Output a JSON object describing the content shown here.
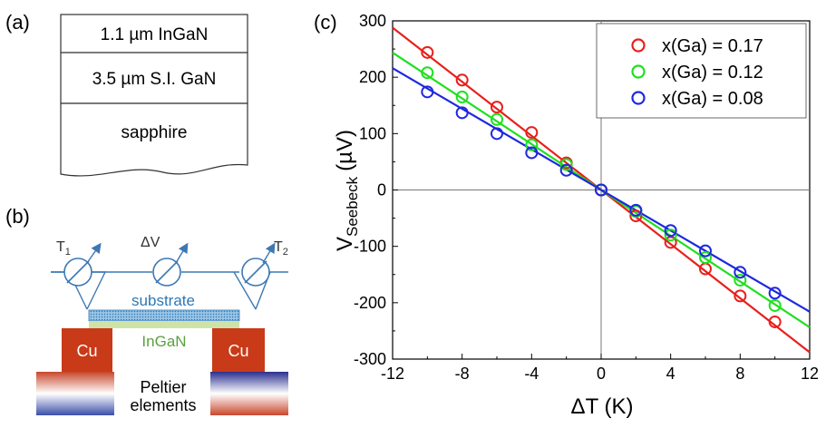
{
  "panel_labels": {
    "a": "(a)",
    "b": "(b)",
    "c": "(c)"
  },
  "layer_stack": {
    "layers": [
      "1.1 µm InGaN",
      "3.5 µm S.I. GaN",
      "sapphire"
    ]
  },
  "setup": {
    "meters": {
      "t1": "T",
      "t1_sub": "1",
      "dv": "ΔV",
      "t2": "T",
      "t2_sub": "2"
    },
    "substrate_label": "substrate",
    "ingan_label": "InGaN",
    "cu_left": "Cu",
    "cu_right": "Cu",
    "peltier_label_1": "Peltier",
    "peltier_label_2": "elements"
  },
  "chart_data": {
    "type": "scatter",
    "xlabel": "ΔT (K)",
    "ylabel_main": "V",
    "ylabel_sub": "Seebeck",
    "ylabel_unit": "(µV)",
    "xlim": [
      -12,
      12
    ],
    "ylim": [
      -300,
      300
    ],
    "xticks": [
      "-12",
      "-8",
      "-4",
      "0",
      "4",
      "8",
      "12"
    ],
    "xtick_values": [
      -12,
      -8,
      -4,
      0,
      4,
      8,
      12
    ],
    "yticks": [
      "300",
      "200",
      "100",
      "0",
      "-100",
      "-200",
      "-300"
    ],
    "ytick_values": [
      300,
      200,
      100,
      0,
      -100,
      -200,
      -300
    ],
    "zero_lines": true,
    "legend_position": "top-right",
    "series": [
      {
        "name": "x(Ga) = 0.17",
        "color": "#e8201c",
        "x": [
          -10,
          -8,
          -6,
          -4,
          -2,
          0,
          2,
          4,
          6,
          8,
          10
        ],
        "y": [
          244,
          195,
          147,
          102,
          48,
          0,
          -46,
          -93,
          -140,
          -188,
          -234
        ],
        "fit_slope": -24.0
      },
      {
        "name": "x(Ga) = 0.12",
        "color": "#1ee01e",
        "x": [
          -10,
          -8,
          -6,
          -4,
          -2,
          0,
          2,
          4,
          6,
          8,
          10
        ],
        "y": [
          208,
          165,
          125,
          80,
          45,
          0,
          -38,
          -80,
          -120,
          -160,
          -205
        ],
        "fit_slope": -20.3
      },
      {
        "name": "x(Ga) = 0.08",
        "color": "#1e28e0",
        "x": [
          -10,
          -8,
          -6,
          -4,
          -2,
          0,
          2,
          4,
          6,
          8,
          10
        ],
        "y": [
          174,
          137,
          100,
          66,
          35,
          0,
          -36,
          -72,
          -108,
          -146,
          -183
        ],
        "fit_slope": -18.0
      }
    ]
  }
}
